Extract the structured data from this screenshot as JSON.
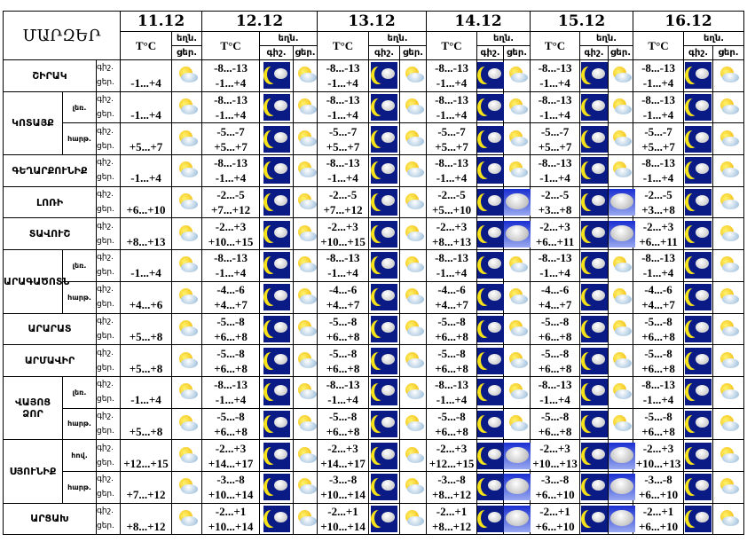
{
  "header": {
    "title": "ՄԱՐԶԵՐ",
    "temp_label": "T°C",
    "weather_label": "եղն.",
    "night_label": "գիշ.",
    "day_label": "ցեր.",
    "dates": [
      "11.12",
      "12.12",
      "13.12",
      "14.12",
      "15.12",
      "16.12"
    ]
  },
  "icons": {
    "night": "moon-cloud-icon",
    "sun": "sun-cloud-icon",
    "cloud": "cloud-icon"
  },
  "rows": [
    {
      "region": "ՇԻՐԱԿ",
      "sub": null,
      "span": 1,
      "d11": "-1...+4",
      "days": [
        [
          "-8...-13",
          "-1...+4",
          "sun"
        ],
        [
          "-8...-13",
          "-1...+4",
          "sun"
        ],
        [
          "-8...-13",
          "-1...+4",
          "sun"
        ],
        [
          "-8...-13",
          "-1...+4",
          "sun"
        ],
        [
          "-8...-13",
          "-1...+4",
          "sun"
        ]
      ]
    },
    {
      "region": "ԿՈՏԱՅՔ",
      "sub": "լեռ.",
      "span": 2,
      "d11": "-1...+4",
      "days": [
        [
          "-8...-13",
          "-1...+4",
          "sun"
        ],
        [
          "-8...-13",
          "-1...+4",
          "sun"
        ],
        [
          "-8...-13",
          "-1...+4",
          "sun"
        ],
        [
          "-8...-13",
          "-1...+4",
          "sun"
        ],
        [
          "-8...-13",
          "-1...+4",
          "sun"
        ]
      ]
    },
    {
      "region": null,
      "sub": "հարթ.",
      "d11": "+5...+7",
      "days": [
        [
          "-5...-7",
          "+5...+7",
          "sun"
        ],
        [
          "-5...-7",
          "+5...+7",
          "sun"
        ],
        [
          "-5...-7",
          "+5...+7",
          "sun"
        ],
        [
          "-5...-7",
          "+5...+7",
          "sun"
        ],
        [
          "-5...-7",
          "+5...+7",
          "sun"
        ]
      ]
    },
    {
      "region": "ԳԵՂԱՐՔՈՒՆԻՔ",
      "sub": null,
      "span": 1,
      "d11": "-1...+4",
      "days": [
        [
          "-8...-13",
          "-1...+4",
          "sun"
        ],
        [
          "-8...-13",
          "-1...+4",
          "sun"
        ],
        [
          "-8...-13",
          "-1...+4",
          "sun"
        ],
        [
          "-8...-13",
          "-1...+4",
          "sun"
        ],
        [
          "-8...-13",
          "-1...+4",
          "sun"
        ]
      ]
    },
    {
      "region": "ԼՈՌԻ",
      "sub": null,
      "span": 1,
      "d11": "+6...+10",
      "days": [
        [
          "-2...-5",
          "+7...+12",
          "sun"
        ],
        [
          "-2...-5",
          "+7...+12",
          "sun"
        ],
        [
          "-2...-5",
          "+5...+10",
          "cloud"
        ],
        [
          "-2...-5",
          "+3...+8",
          "cloud"
        ],
        [
          "-2...-5",
          "+3...+8",
          "sun"
        ]
      ]
    },
    {
      "region": "ՏԱՎՈՒՇ",
      "sub": null,
      "span": 1,
      "d11": "+8...+13",
      "days": [
        [
          "-2...+3",
          "+10...+15",
          "sun"
        ],
        [
          "-2...+3",
          "+10...+15",
          "sun"
        ],
        [
          "-2...+3",
          "+8...+13",
          "cloud"
        ],
        [
          "-2...+3",
          "+6...+11",
          "cloud"
        ],
        [
          "-2...+3",
          "+6...+11",
          "sun"
        ]
      ]
    },
    {
      "region": "ԱՐԱԳԱԾՈՏՆ",
      "sub": "լեռ.",
      "span": 2,
      "d11": "-1...+4",
      "days": [
        [
          "-8...-13",
          "-1...+4",
          "sun"
        ],
        [
          "-8...-13",
          "-1...+4",
          "sun"
        ],
        [
          "-8...-13",
          "-1...+4",
          "sun"
        ],
        [
          "-8...-13",
          "-1...+4",
          "sun"
        ],
        [
          "-8...-13",
          "-1...+4",
          "sun"
        ]
      ]
    },
    {
      "region": null,
      "sub": "հարթ.",
      "d11": "+4...+6",
      "days": [
        [
          "-4...-6",
          "+4...+7",
          "sun"
        ],
        [
          "-4...-6",
          "+4...+7",
          "sun"
        ],
        [
          "-4...-6",
          "+4...+7",
          "sun"
        ],
        [
          "-4...-6",
          "+4...+7",
          "sun"
        ],
        [
          "-4...-6",
          "+4...+7",
          "sun"
        ]
      ]
    },
    {
      "region": "ԱՐԱՐԱՏ",
      "sub": null,
      "span": 1,
      "d11": "+5...+8",
      "days": [
        [
          "-5...-8",
          "+6...+8",
          "sun"
        ],
        [
          "-5...-8",
          "+6...+8",
          "sun"
        ],
        [
          "-5...-8",
          "+6...+8",
          "sun"
        ],
        [
          "-5...-8",
          "+6...+8",
          "sun"
        ],
        [
          "-5...-8",
          "+6...+8",
          "sun"
        ]
      ]
    },
    {
      "region": "ԱՐՄԱՎԻՐ",
      "sub": null,
      "span": 1,
      "d11": "+5...+8",
      "days": [
        [
          "-5...-8",
          "+6...+8",
          "sun"
        ],
        [
          "-5...-8",
          "+6...+8",
          "sun"
        ],
        [
          "-5...-8",
          "+6...+8",
          "sun"
        ],
        [
          "-5...-8",
          "+6...+8",
          "sun"
        ],
        [
          "-5...-8",
          "+6...+8",
          "sun"
        ]
      ]
    },
    {
      "region": "ՎԱՅՈՑ ՁՈՐ",
      "sub": "լեռ.",
      "span": 2,
      "d11": "-1...+4",
      "days": [
        [
          "-8...-13",
          "-1...+4",
          "sun"
        ],
        [
          "-8...-13",
          "-1...+4",
          "sun"
        ],
        [
          "-8...-13",
          "-1...+4",
          "sun"
        ],
        [
          "-8...-13",
          "-1...+4",
          "sun"
        ],
        [
          "-8...-13",
          "-1...+4",
          "sun"
        ]
      ]
    },
    {
      "region": null,
      "sub": "հարթ.",
      "d11": "+5...+8",
      "days": [
        [
          "-5...-8",
          "+6...+8",
          "sun"
        ],
        [
          "-5...-8",
          "+6...+8",
          "sun"
        ],
        [
          "-5...-8",
          "+6...+8",
          "sun"
        ],
        [
          "-5...-8",
          "+6...+8",
          "sun"
        ],
        [
          "-5...-8",
          "+6...+8",
          "sun"
        ]
      ]
    },
    {
      "region": "ՍՅՈՒՆԻՔ",
      "sub": "հով.",
      "span": 2,
      "d11": "+12...+15",
      "days": [
        [
          "-2...+3",
          "+14...+17",
          "sun"
        ],
        [
          "-2...+3",
          "+14...+17",
          "sun"
        ],
        [
          "-2...+3",
          "+12...+15",
          "cloud"
        ],
        [
          "-2...+3",
          "+10...+13",
          "cloud"
        ],
        [
          "-2...+3",
          "+10...+13",
          "sun"
        ]
      ]
    },
    {
      "region": null,
      "sub": "հարթ.",
      "d11": "+7...+12",
      "days": [
        [
          "-3...-8",
          "+10...+14",
          "sun"
        ],
        [
          "-3...-8",
          "+10...+14",
          "sun"
        ],
        [
          "-3...-8",
          "+8...+12",
          "cloud"
        ],
        [
          "-3...-8",
          "+6...+10",
          "cloud"
        ],
        [
          "-3...-8",
          "+6...+10",
          "sun"
        ]
      ]
    },
    {
      "region": "ԱՐՑԱԽ",
      "sub": null,
      "span": 1,
      "d11": "+8...+12",
      "days": [
        [
          "-2...+1",
          "+10...+14",
          "sun"
        ],
        [
          "-2...+1",
          "+10...+14",
          "sun"
        ],
        [
          "-2...+1",
          "+8...+12",
          "cloud"
        ],
        [
          "-2...+1",
          "+6...+10",
          "cloud"
        ],
        [
          "-2...+1",
          "+6...+10",
          "sun"
        ]
      ]
    }
  ]
}
